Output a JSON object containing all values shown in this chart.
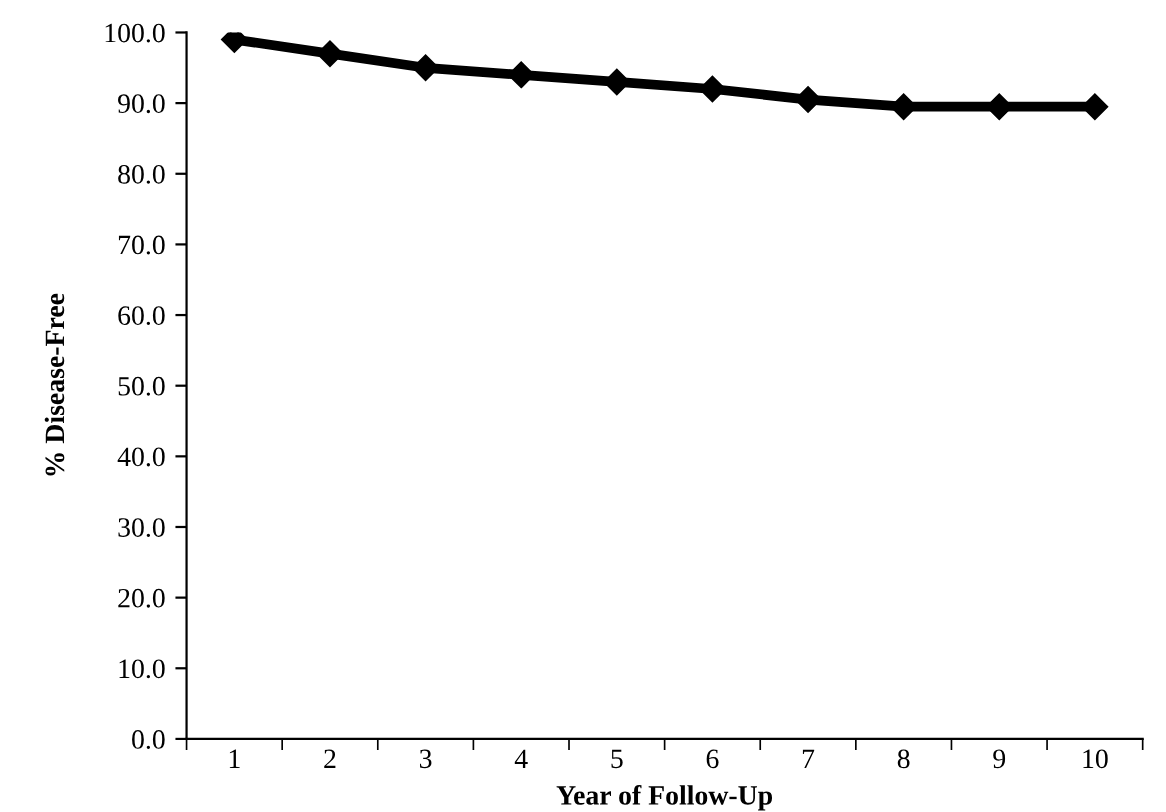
{
  "chart_data": {
    "type": "line",
    "xlabel": "Year of Follow-Up",
    "ylabel": "% Disease-Free",
    "categories": [
      "1",
      "2",
      "3",
      "4",
      "5",
      "6",
      "7",
      "8",
      "9",
      "10"
    ],
    "series": [
      {
        "color": "#000000",
        "values": [
          99,
          97,
          95,
          94,
          93,
          92,
          90.5,
          89.5,
          89.5,
          89.5
        ]
      }
    ],
    "ylim": [
      0,
      100
    ],
    "yticks": [
      {
        "value": 0,
        "label": "0.0"
      },
      {
        "value": 10,
        "label": "10.0"
      },
      {
        "value": 20,
        "label": "20.0"
      },
      {
        "value": 30,
        "label": "30.0"
      },
      {
        "value": 40,
        "label": "40.0"
      },
      {
        "value": 50,
        "label": "50.0"
      },
      {
        "value": 60,
        "label": "60.0"
      },
      {
        "value": 70,
        "label": "70.0"
      },
      {
        "value": 80,
        "label": "80.0"
      },
      {
        "value": 90,
        "label": "90.0"
      },
      {
        "value": 100,
        "label": "100.0"
      }
    ],
    "grid": false,
    "legend": false,
    "marker": "diamond",
    "line_style": "solid"
  }
}
